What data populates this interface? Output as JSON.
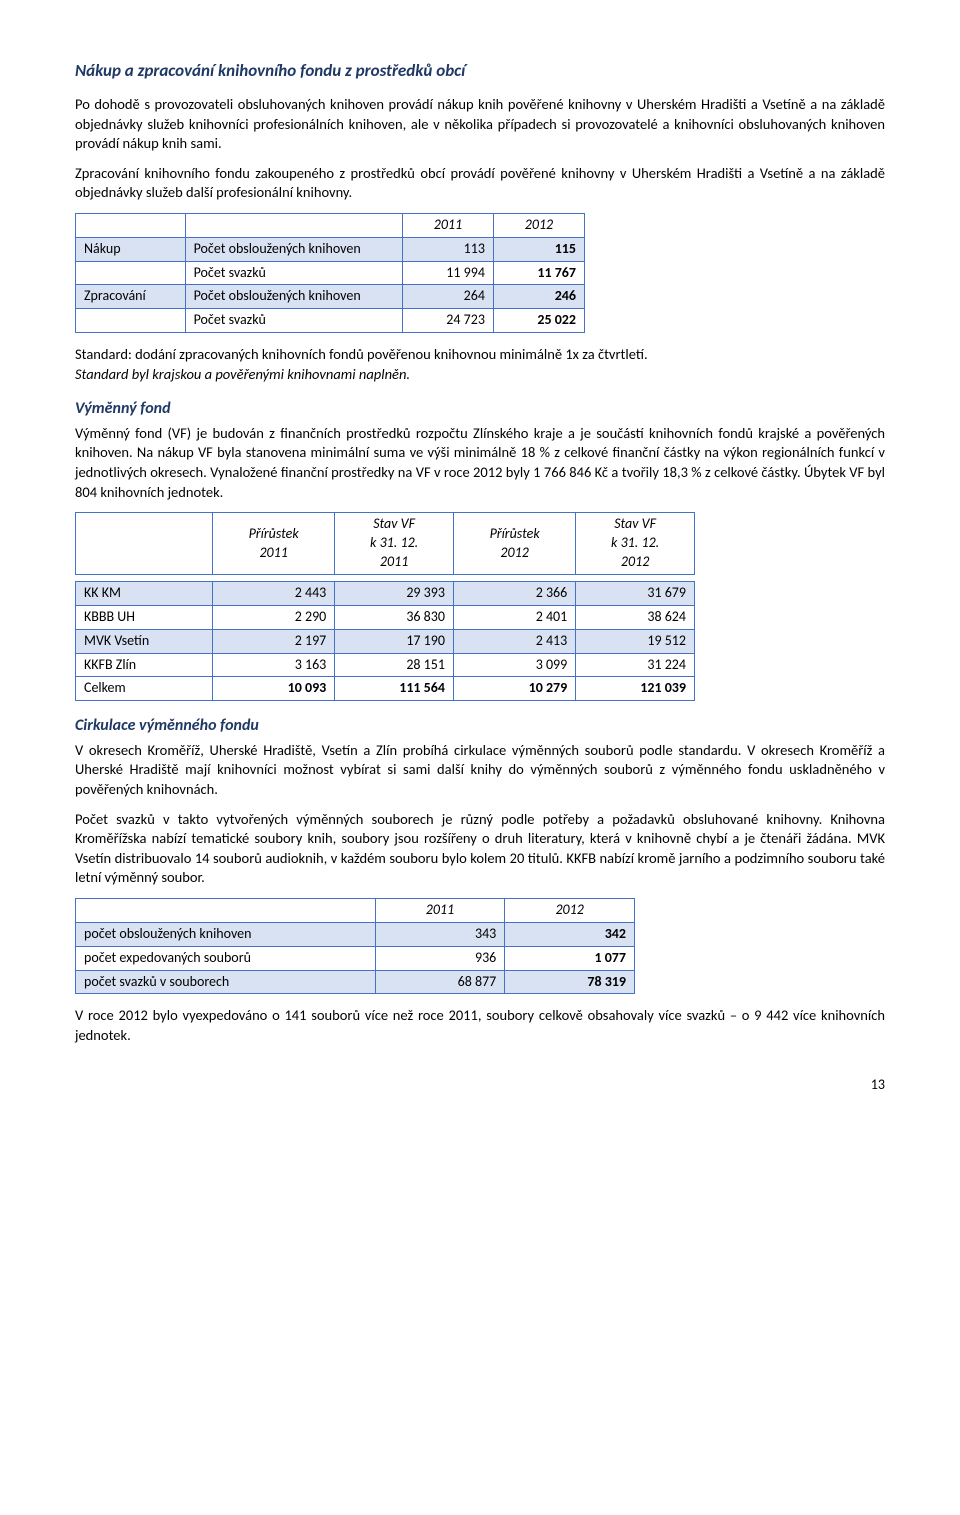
{
  "section1": {
    "title": "Nákup a zpracování knihovního fondu z prostředků obcí",
    "p1": "Po dohodě s provozovateli obsluhovaných knihoven provádí nákup knih pověřené knihovny v Uherském Hradišti a Vsetíně a na základě objednávky služeb knihovníci profesionálních knihoven, ale v několika případech si provozovatelé a knihovníci obsluhovaných knihoven provádí nákup knih sami.",
    "p2": "Zpracování knihovního fondu zakoupeného z prostředků obcí provádí pověřené knihovny v Uherském Hradišti a Vsetíně a na základě objednávky služeb další profesionální knihovny."
  },
  "table1": {
    "head": [
      "",
      "",
      "2011",
      "2012"
    ],
    "rows": [
      {
        "group": "Nákup",
        "label": "Počet obsloužených knihoven",
        "y1": "113",
        "y2": "115",
        "shade": true
      },
      {
        "group": "",
        "label": "Počet svazků",
        "y1": "11 994",
        "y2": "11 767",
        "shade": false
      },
      {
        "group": "Zpracování",
        "label": "Počet obsloužených knihoven",
        "y1": "264",
        "y2": "246",
        "shade": true
      },
      {
        "group": "",
        "label": "Počet svazků",
        "y1": "24 723",
        "y2": "25 022",
        "shade": false
      }
    ]
  },
  "standard1": {
    "line1": "Standard: dodání zpracovaných knihovních fondů pověřenou knihovnou minimálně 1x za čtvrtletí.",
    "line2": "Standard byl krajskou a pověřenými knihovnami naplněn."
  },
  "section2": {
    "title": "Výměnný fond",
    "p1": "Výměnný fond (VF) je budován z finančních prostředků rozpočtu Zlínského kraje a je součástí knihovních fondů krajské a pověřených knihoven. Na nákup VF byla stanovena minimální suma ve výši minimálně 18 % z celkové finanční částky na výkon regionálních funkcí v jednotlivých okresech. Vynaložené finanční prostředky na VF v roce 2012 byly 1 766 846 Kč a tvořily 18,3 % z celkové částky. Úbytek VF byl 804 knihovních jednotek."
  },
  "table2": {
    "head": [
      "",
      "Přírůstek\n2011",
      "Stav VF\nk 31. 12.\n2011",
      "Přírůstek\n2012",
      "Stav VF\nk 31. 12.\n2012"
    ],
    "rows": [
      {
        "label": "KK KM",
        "v": [
          "2 443",
          "29 393",
          "2 366",
          "31 679"
        ],
        "shade": true
      },
      {
        "label": "KBBB UH",
        "v": [
          "2 290",
          "36 830",
          "2 401",
          "38 624"
        ],
        "shade": false
      },
      {
        "label": "MVK Vsetín",
        "v": [
          "2 197",
          "17 190",
          "2 413",
          "19 512"
        ],
        "shade": true
      },
      {
        "label": "KKFB Zlín",
        "v": [
          "3 163",
          "28 151",
          "3 099",
          "31 224"
        ],
        "shade": false
      },
      {
        "label": "Celkem",
        "v": [
          "10 093",
          "111 564",
          "10 279",
          "121 039"
        ],
        "shade": false,
        "bold": true
      }
    ]
  },
  "section3": {
    "title": "Cirkulace výměnného fondu",
    "p1": "V okresech Kroměříž, Uherské Hradiště, Vsetín a Zlín probíhá cirkulace výměnných souborů podle standardu. V okresech Kroměříž a Uherské Hradiště mají knihovníci možnost vybírat si sami další knihy do výměnných souborů z výměnného fondu uskladněného v pověřených knihovnách.",
    "p2": "Počet svazků v takto vytvořených výměnných souborech je různý podle potřeby a požadavků obsluhované knihovny. Knihovna Kroměřížska nabízí tematické soubory knih, soubory jsou rozšířeny o druh literatury, která v knihovně chybí a je čtenáři žádána. MVK Vsetín distribuovalo 14 souborů audioknih, v každém souboru bylo kolem 20 titulů. KKFB nabízí kromě jarního a podzimního souboru také letní výměnný soubor."
  },
  "table3": {
    "head": [
      "",
      "2011",
      "2012"
    ],
    "rows": [
      {
        "label": "počet obsloužených knihoven",
        "y1": "343",
        "y2": "342",
        "shade": true
      },
      {
        "label": "počet expedovaných souborů",
        "y1": "936",
        "y2": "1 077",
        "shade": false
      },
      {
        "label": "počet svazků v souborech",
        "y1": "68 877",
        "y2": "78 319",
        "shade": true
      }
    ]
  },
  "closing": "V roce 2012 bylo vyexpedováno o 141 souborů více než roce 2011, soubory celkově obsahovaly více svazků – o 9 442 více knihovních jednotek.",
  "pagenum": "13"
}
